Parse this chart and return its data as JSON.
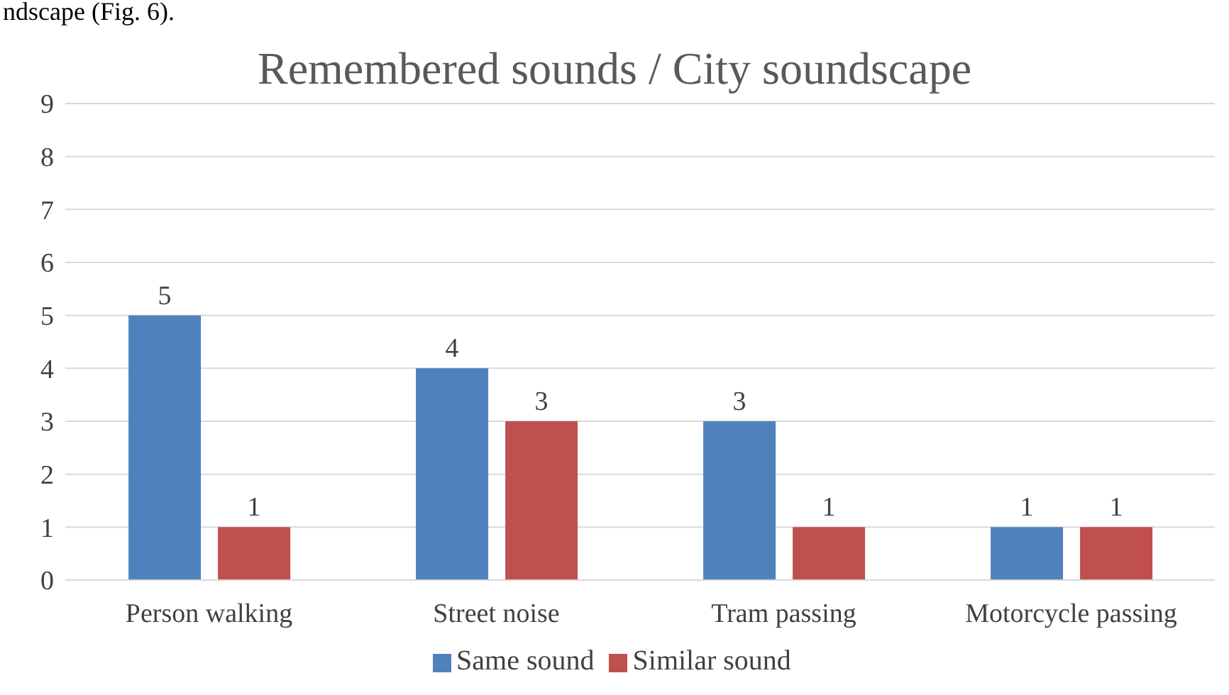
{
  "chart_data": {
    "type": "bar",
    "title": "Remembered sounds / City soundscape",
    "annotations": [
      "ndscape (Fig. 6)."
    ],
    "categories": [
      "Person walking",
      "Street noise",
      "Tram passing",
      "Motorcycle passing"
    ],
    "series": [
      {
        "name": "Same sound",
        "color": "#4f81bd",
        "values": [
          5,
          4,
          3,
          1
        ]
      },
      {
        "name": "Similar sound",
        "color": "#c0504d",
        "values": [
          1,
          3,
          1,
          1
        ]
      }
    ],
    "ylim": [
      0,
      9
    ],
    "yticks": [
      0,
      1,
      2,
      3,
      4,
      5,
      6,
      7,
      8,
      9
    ],
    "grid": "y",
    "legend": "bottom",
    "data_labels": true
  }
}
